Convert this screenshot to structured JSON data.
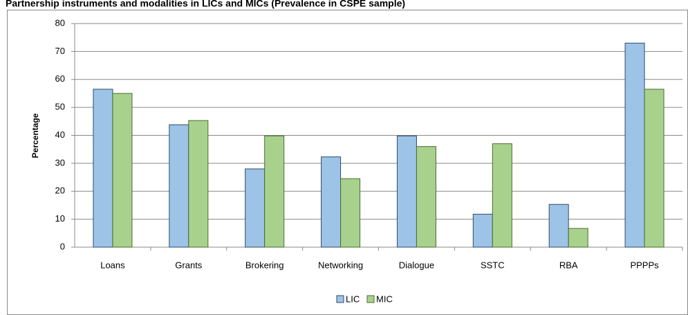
{
  "chart_data": {
    "type": "bar",
    "title": "Partnership instruments and modalities in LICs and MICs (Prevalence in CSPE sample)",
    "y_label": "Percentage",
    "categories": [
      "Loans",
      "Grants",
      "Brokering",
      "Networking",
      "Dialogue",
      "SSTC",
      "RBA",
      "PPPPs"
    ],
    "series": [
      {
        "name": "LIC",
        "color": "#9dc3e6",
        "edge": "#2e4a6b",
        "values": [
          56.5,
          43.8,
          28,
          32.3,
          39.8,
          11.8,
          15.3,
          73
        ]
      },
      {
        "name": "MIC",
        "color": "#a9d18e",
        "edge": "#4a6a2c",
        "values": [
          55,
          45.3,
          39.8,
          24.5,
          36,
          37,
          6.7,
          56.5
        ]
      }
    ],
    "ylim": [
      0,
      80
    ],
    "yticks": [
      0,
      10,
      20,
      30,
      40,
      50,
      60,
      70,
      80
    ],
    "grid": true,
    "legend": "bottom"
  }
}
